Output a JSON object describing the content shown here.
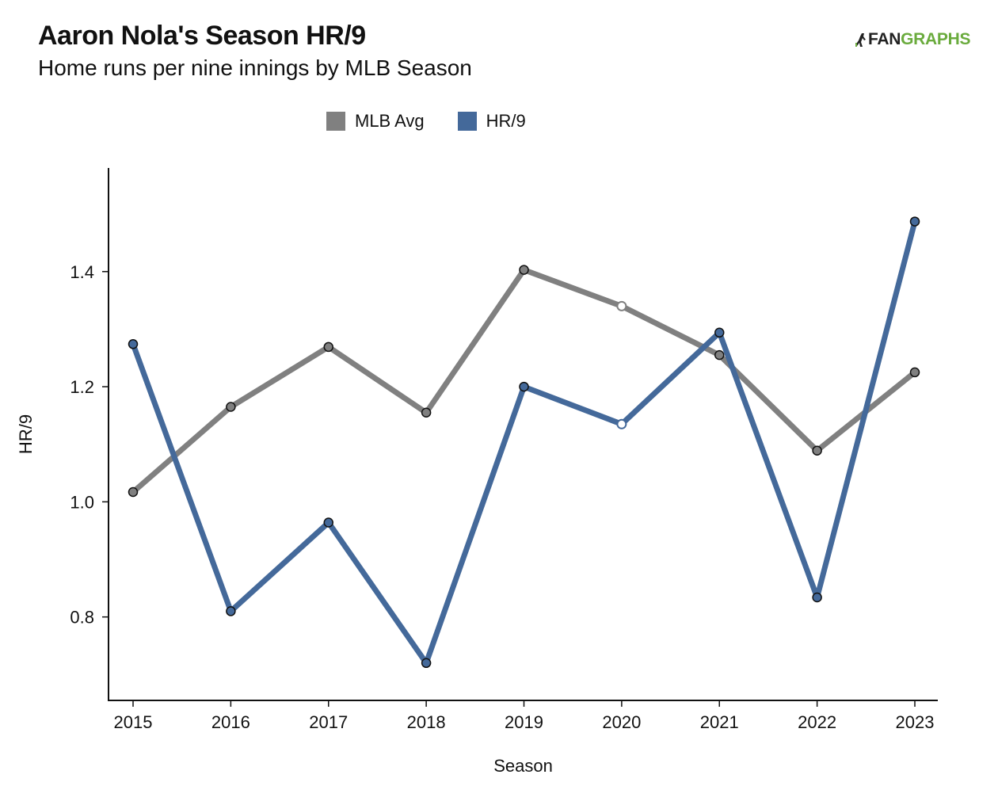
{
  "header": {
    "title": "Aaron Nola's Season HR/9",
    "subtitle": "Home runs per nine innings by MLB Season"
  },
  "logo": {
    "fan": "FAN",
    "graphs": "GRAPHS"
  },
  "colors": {
    "mlb_avg": "#808080",
    "hr9": "#44699a",
    "logo_green": "#6aab3d"
  },
  "chart_data": {
    "type": "line",
    "title": "Aaron Nola's Season HR/9",
    "subtitle": "Home runs per nine innings by MLB Season",
    "xlabel": "Season",
    "ylabel": "HR/9",
    "categories": [
      "2015",
      "2016",
      "2017",
      "2018",
      "2019",
      "2020",
      "2021",
      "2022",
      "2023"
    ],
    "ylim": [
      0.655,
      1.58
    ],
    "yticks": [
      "0.8",
      "1.0",
      "1.2",
      "1.4"
    ],
    "grid": false,
    "legend_position": "top-center",
    "series": [
      {
        "name": "MLB Avg",
        "values": [
          1.017,
          1.165,
          1.269,
          1.155,
          1.403,
          1.34,
          1.255,
          1.089,
          1.225
        ]
      },
      {
        "name": "HR/9",
        "values": [
          1.274,
          0.81,
          0.964,
          0.72,
          1.2,
          1.135,
          1.294,
          0.834,
          1.487
        ]
      }
    ]
  }
}
